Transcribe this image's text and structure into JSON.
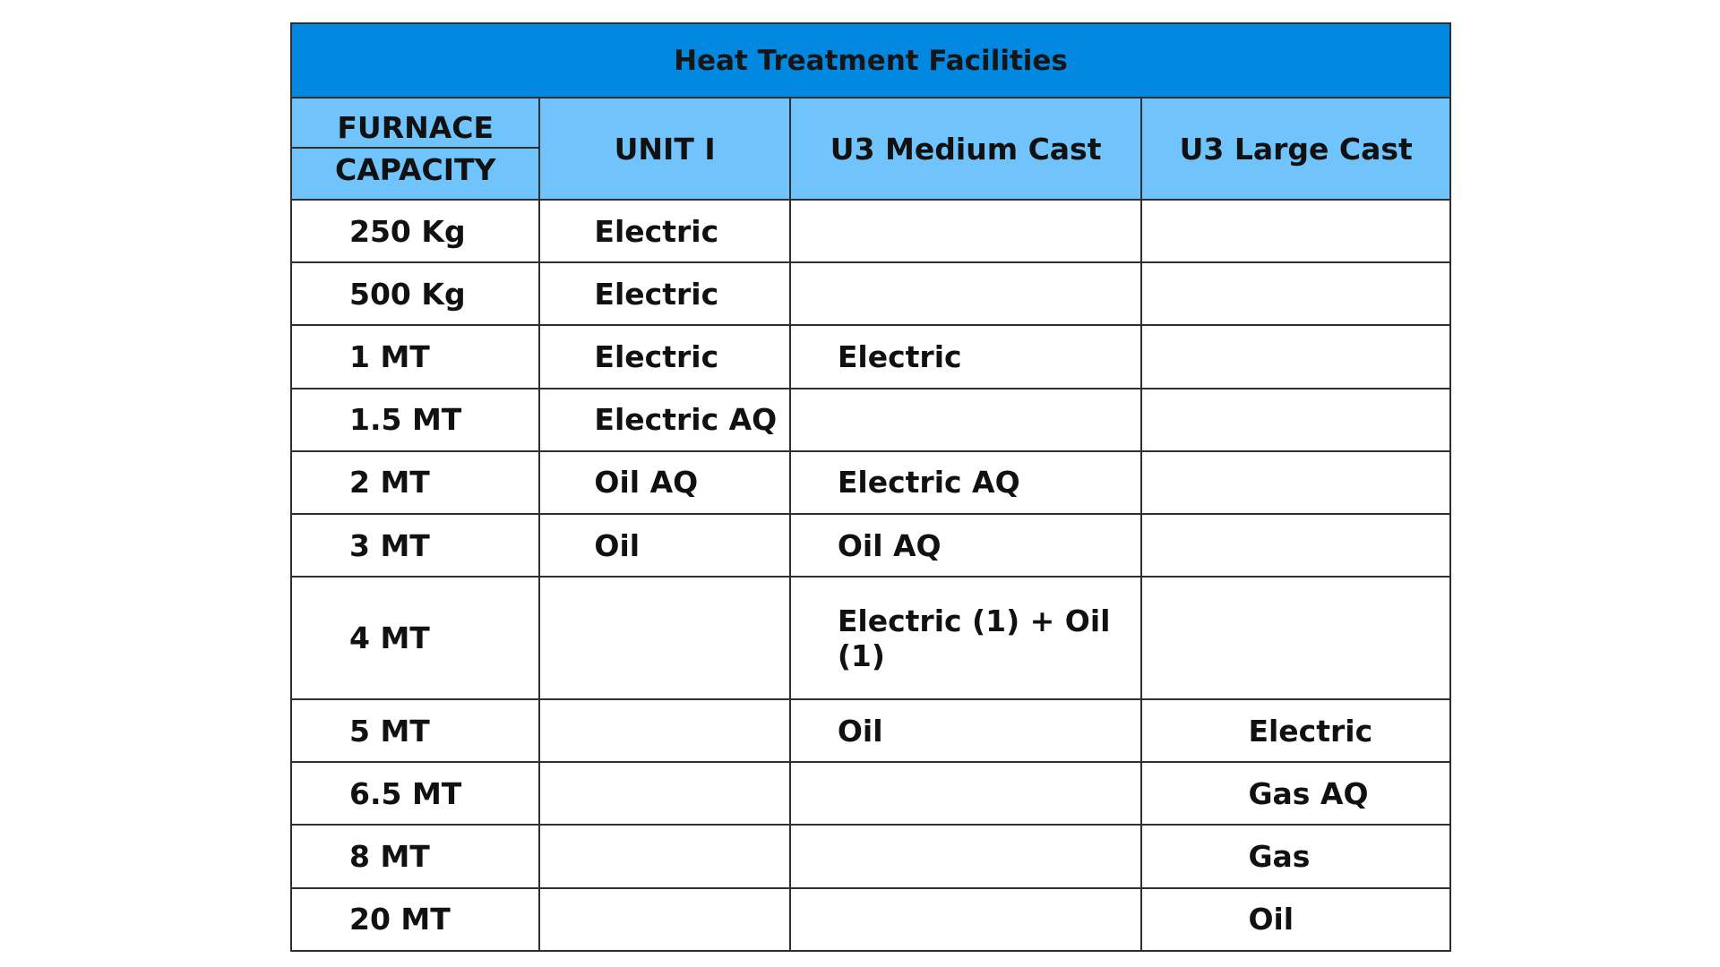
{
  "table": {
    "title": "Heat Treatment Facilities",
    "headers": {
      "capacity_line1": "FURNACE",
      "capacity_line2": "CAPACITY",
      "unit1": "UNIT I",
      "u3_medium": "U3 Medium Cast",
      "u3_large": "U3 Large Cast"
    },
    "rows": [
      {
        "capacity": "250 Kg",
        "unit1": "Electric",
        "u3_medium": "",
        "u3_large": ""
      },
      {
        "capacity": "500 Kg",
        "unit1": "Electric",
        "u3_medium": "",
        "u3_large": ""
      },
      {
        "capacity": "1 MT",
        "unit1": "Electric",
        "u3_medium": "Electric",
        "u3_large": ""
      },
      {
        "capacity": "1.5 MT",
        "unit1": "Electric AQ",
        "u3_medium": "",
        "u3_large": ""
      },
      {
        "capacity": "2 MT",
        "unit1": "Oil AQ",
        "u3_medium": "Electric AQ",
        "u3_large": ""
      },
      {
        "capacity": "3 MT",
        "unit1": "Oil",
        "u3_medium": "Oil AQ",
        "u3_large": ""
      },
      {
        "capacity": "4 MT",
        "unit1": "",
        "u3_medium": "Electric (1) + Oil (1)",
        "u3_large": ""
      },
      {
        "capacity": "5 MT",
        "unit1": "",
        "u3_medium": "Oil",
        "u3_large": "Electric"
      },
      {
        "capacity": "6.5 MT",
        "unit1": "",
        "u3_medium": "",
        "u3_large": "Gas AQ"
      },
      {
        "capacity": "8 MT",
        "unit1": "",
        "u3_medium": "",
        "u3_large": "Gas"
      },
      {
        "capacity": "20 MT",
        "unit1": "",
        "u3_medium": "",
        "u3_large": "Oil"
      }
    ]
  }
}
